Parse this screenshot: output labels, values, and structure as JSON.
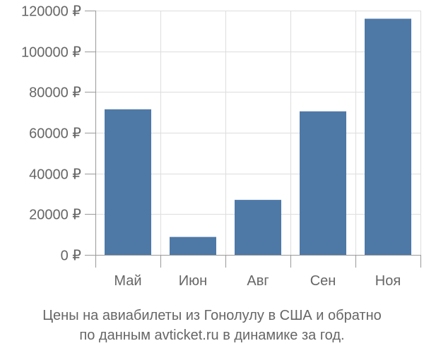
{
  "chart_data": {
    "type": "bar",
    "categories": [
      "Май",
      "Июн",
      "Авг",
      "Сен",
      "Ноя"
    ],
    "values": [
      71500,
      8800,
      27000,
      70500,
      116000
    ],
    "ylim": [
      0,
      120000
    ],
    "y_ticks": [
      0,
      20000,
      40000,
      60000,
      80000,
      100000,
      120000
    ],
    "y_tick_labels": [
      "0 ₽",
      "20000 ₽",
      "40000 ₽",
      "60000 ₽",
      "80000 ₽",
      "100000 ₽",
      "120000 ₽"
    ],
    "grid": true,
    "bar_color": "#4e79a7",
    "grid_color": "#dddddd",
    "axis_color": "#999999",
    "text_color": "#666666"
  },
  "caption": {
    "line1": "Цены на авиабилеты из Гонолулу в США и обратно",
    "line2": "по данным avticket.ru в динамике за год."
  }
}
